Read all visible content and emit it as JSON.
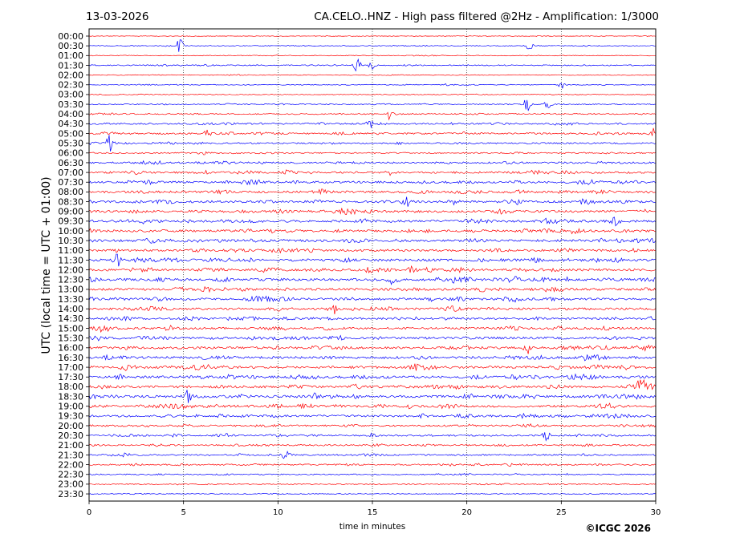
{
  "header": {
    "date": "13-03-2026",
    "title": "CA.CELO..HNZ - High pass filtered @2Hz - Amplification: 1/3000"
  },
  "footer": {
    "copyright": "©ICGC 2026"
  },
  "chart_data": {
    "type": "line",
    "title": "CA.CELO..HNZ - High pass filtered @2Hz - Amplification: 1/3000",
    "xlabel": "time in minutes",
    "ylabel": "UTC (local time = UTC + 01:00)",
    "xlim": [
      0,
      30
    ],
    "xticks": [
      "0",
      "5",
      "10",
      "15",
      "20",
      "25",
      "30"
    ],
    "rows": [
      "00:00",
      "00:30",
      "01:00",
      "01:30",
      "02:00",
      "02:30",
      "03:00",
      "03:30",
      "04:00",
      "04:30",
      "05:00",
      "05:30",
      "06:00",
      "06:30",
      "07:00",
      "07:30",
      "08:00",
      "08:30",
      "09:00",
      "09:30",
      "10:00",
      "10:30",
      "11:00",
      "11:30",
      "12:00",
      "12:30",
      "13:00",
      "13:30",
      "14:00",
      "14:30",
      "15:00",
      "15:30",
      "16:00",
      "16:30",
      "17:00",
      "17:30",
      "18:00",
      "18:30",
      "19:00",
      "19:30",
      "20:00",
      "20:30",
      "21:00",
      "21:30",
      "22:00",
      "22:30",
      "23:00",
      "23:30"
    ],
    "row_colors": [
      "#ff0000",
      "#0000ff"
    ],
    "grid_x": true,
    "activity": [
      0.1,
      0.2,
      0.15,
      0.3,
      0.15,
      0.2,
      0.15,
      0.25,
      0.35,
      0.5,
      0.55,
      0.45,
      0.4,
      0.6,
      0.7,
      0.75,
      0.75,
      0.8,
      0.85,
      0.85,
      0.8,
      0.85,
      0.8,
      0.85,
      0.85,
      0.9,
      0.8,
      0.8,
      0.8,
      0.75,
      0.75,
      0.8,
      0.85,
      0.85,
      0.9,
      0.85,
      0.85,
      0.9,
      0.85,
      0.75,
      0.6,
      0.55,
      0.5,
      0.45,
      0.45,
      0.3,
      0.25,
      0.15
    ],
    "events": [
      {
        "row": 1,
        "minute": 4.8,
        "amp": 1.5
      },
      {
        "row": 1,
        "minute": 23.3,
        "amp": 0.9
      },
      {
        "row": 3,
        "minute": 14.2,
        "amp": 1.4
      },
      {
        "row": 3,
        "minute": 15.0,
        "amp": 1.0
      },
      {
        "row": 5,
        "minute": 25.0,
        "amp": 1.0
      },
      {
        "row": 7,
        "minute": 23.2,
        "amp": 1.5
      },
      {
        "row": 7,
        "minute": 24.3,
        "amp": 0.8
      },
      {
        "row": 8,
        "minute": 15.9,
        "amp": 1.3
      },
      {
        "row": 9,
        "minute": 14.9,
        "amp": 1.0
      },
      {
        "row": 10,
        "minute": 6.3,
        "amp": 1.0
      },
      {
        "row": 10,
        "minute": 29.9,
        "amp": 1.2
      },
      {
        "row": 11,
        "minute": 1.1,
        "amp": 2.2
      },
      {
        "row": 17,
        "minute": 16.8,
        "amp": 1.4
      },
      {
        "row": 19,
        "minute": 27.8,
        "amp": 1.0
      },
      {
        "row": 23,
        "minute": 1.5,
        "amp": 1.3
      },
      {
        "row": 24,
        "minute": 17.1,
        "amp": 1.6
      },
      {
        "row": 25,
        "minute": 15.9,
        "amp": 1.1
      },
      {
        "row": 28,
        "minute": 12.9,
        "amp": 1.2
      },
      {
        "row": 32,
        "minute": 23.2,
        "amp": 1.5
      },
      {
        "row": 36,
        "minute": 29.2,
        "amp": 1.7
      },
      {
        "row": 37,
        "minute": 5.2,
        "amp": 1.1
      },
      {
        "row": 37,
        "minute": 12.0,
        "amp": 1.1
      },
      {
        "row": 38,
        "minute": 6.5,
        "amp": 1.1
      },
      {
        "row": 41,
        "minute": 24.2,
        "amp": 1.0
      },
      {
        "row": 43,
        "minute": 10.4,
        "amp": 1.0
      }
    ]
  }
}
